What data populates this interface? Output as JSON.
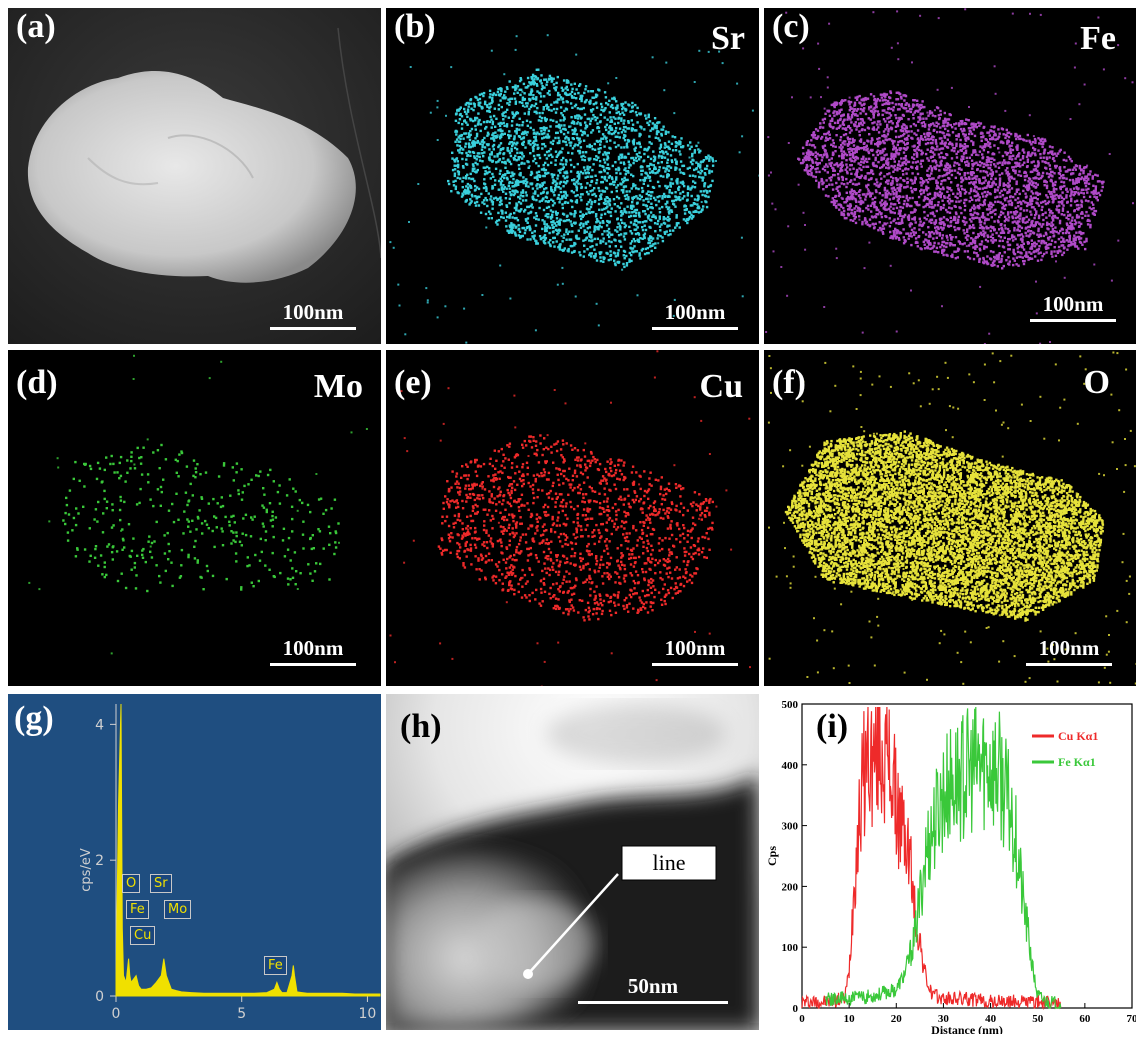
{
  "panels": {
    "a": {
      "label": "(a)",
      "scale": "100nm"
    },
    "b": {
      "label": "(b)",
      "element": "Sr",
      "scale": "100nm",
      "color": "#3ad0dc"
    },
    "c": {
      "label": "(c)",
      "element": "Fe",
      "scale": "100nm",
      "color": "#b04ac8"
    },
    "d": {
      "label": "(d)",
      "element": "Mo",
      "scale": "100nm",
      "color": "#3ac83a"
    },
    "e": {
      "label": "(e)",
      "element": "Cu",
      "scale": "100nm",
      "color": "#ee2a2a"
    },
    "f": {
      "label": "(f)",
      "element": "O",
      "scale": "100nm",
      "color": "#e6e23a"
    },
    "g": {
      "label": "(g)",
      "ylabel": "cps/eV",
      "peak_labels": [
        "O",
        "Sr",
        "Fe",
        "Mo",
        "Cu",
        "Fe"
      ]
    },
    "h": {
      "label": "(h)",
      "annotation": "line",
      "scale": "50nm"
    },
    "i": {
      "label": "(i)"
    }
  },
  "chart_data": [
    {
      "type": "line",
      "panel": "g",
      "ylabel": "cps/eV",
      "xlabel": "",
      "xlim": [
        0,
        10.5
      ],
      "ylim": [
        0,
        4.3
      ],
      "xticks": [
        0,
        5,
        10
      ],
      "yticks": [
        0,
        2,
        4
      ],
      "background": "#1f4e80",
      "color": "#f0e000",
      "series": [
        {
          "x": [
            0.0,
            0.1,
            0.2,
            0.25,
            0.3,
            0.4,
            0.5,
            0.55,
            0.6,
            0.7,
            0.8,
            0.9,
            1.0,
            1.1,
            1.2,
            1.4,
            1.6,
            1.8,
            1.9,
            2.0,
            2.1,
            2.2,
            2.4,
            2.6,
            3.0,
            3.5,
            4.0,
            4.5,
            5.0,
            5.5,
            6.0,
            6.3,
            6.4,
            6.5,
            6.6,
            6.8,
            7.0,
            7.05,
            7.1,
            7.2,
            7.4,
            7.6,
            8.0,
            8.5,
            9.0,
            9.5,
            10.0,
            10.5
          ],
          "values": [
            0.2,
            2.8,
            4.3,
            1.0,
            0.3,
            0.2,
            0.55,
            0.3,
            0.2,
            0.25,
            0.3,
            0.15,
            0.1,
            0.1,
            0.1,
            0.12,
            0.2,
            0.3,
            0.55,
            0.3,
            0.2,
            0.1,
            0.08,
            0.06,
            0.05,
            0.04,
            0.04,
            0.04,
            0.04,
            0.04,
            0.05,
            0.1,
            0.2,
            0.1,
            0.05,
            0.05,
            0.3,
            0.45,
            0.3,
            0.06,
            0.05,
            0.04,
            0.04,
            0.04,
            0.04,
            0.03,
            0.03,
            0.03
          ]
        }
      ]
    },
    {
      "type": "line",
      "panel": "i",
      "xlabel": "Distance (nm)",
      "ylabel": "Cps",
      "xlim": [
        0,
        70
      ],
      "ylim": [
        0,
        500
      ],
      "xticks": [
        0,
        10,
        20,
        30,
        40,
        50,
        60,
        70
      ],
      "yticks": [
        0,
        100,
        200,
        300,
        400,
        500
      ],
      "legend": "top-right",
      "series": [
        {
          "name": "Cu Kα1",
          "color": "#ee2a2a",
          "x": [
            0,
            5,
            9,
            10,
            11,
            12,
            13,
            14,
            15,
            16,
            17,
            18,
            19,
            20,
            21,
            22,
            23,
            24,
            25,
            26,
            27,
            28,
            30,
            35,
            40,
            45,
            50,
            55
          ],
          "values": [
            10,
            10,
            15,
            60,
            200,
            300,
            380,
            420,
            400,
            430,
            420,
            410,
            390,
            330,
            300,
            280,
            240,
            150,
            110,
            60,
            30,
            20,
            15,
            15,
            10,
            10,
            10,
            5
          ]
        },
        {
          "name": "Fe Kα1",
          "color": "#3ac83a",
          "x": [
            5,
            10,
            15,
            20,
            22,
            24,
            25,
            26,
            27,
            28,
            29,
            30,
            32,
            34,
            36,
            38,
            40,
            42,
            44,
            45,
            46,
            47,
            48,
            49,
            50,
            52,
            55
          ],
          "values": [
            15,
            15,
            20,
            30,
            60,
            120,
            180,
            240,
            280,
            300,
            330,
            350,
            370,
            380,
            390,
            400,
            400,
            380,
            330,
            300,
            240,
            170,
            120,
            60,
            20,
            10,
            5
          ]
        }
      ]
    }
  ]
}
